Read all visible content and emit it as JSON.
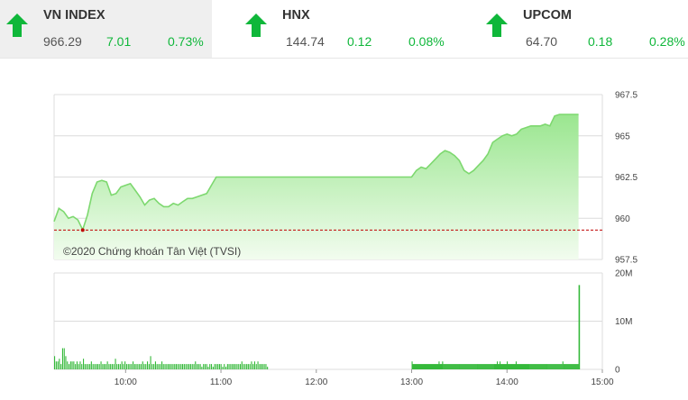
{
  "tickers": [
    {
      "name": "VN INDEX",
      "value": "966.29",
      "change": "7.01",
      "percent": "0.73%",
      "direction": "up",
      "active": true
    },
    {
      "name": "HNX",
      "value": "144.74",
      "change": "0.12",
      "percent": "0.08%",
      "direction": "up",
      "active": false
    },
    {
      "name": "UPCOM",
      "value": "64.70",
      "change": "0.18",
      "percent": "0.28%",
      "direction": "up",
      "active": false
    }
  ],
  "colors": {
    "up": "#0fb73a",
    "area_top": "#9ae68f",
    "area_bottom": "#f2fcef",
    "line": "#7dd86f",
    "ref_line": "#c00000",
    "volume": "#35b93a",
    "grid": "#dcdcdc"
  },
  "chart_data": {
    "type": "line",
    "watermark": "©2020 Chứng khoán Tân Việt (TVSI)",
    "price": {
      "ylim": [
        957.5,
        967.5
      ],
      "yticks": [
        "967.5",
        "965",
        "962.5",
        "960",
        "957.5"
      ],
      "reference": 959.28,
      "x": [
        "09:15",
        "09:18",
        "09:21",
        "09:24",
        "09:27",
        "09:30",
        "09:33",
        "09:36",
        "09:39",
        "09:42",
        "09:45",
        "09:48",
        "09:51",
        "09:54",
        "09:57",
        "10:00",
        "10:03",
        "10:06",
        "10:09",
        "10:12",
        "10:15",
        "10:18",
        "10:21",
        "10:24",
        "10:27",
        "10:30",
        "10:33",
        "10:36",
        "10:39",
        "10:42",
        "10:45",
        "10:48",
        "10:51",
        "10:54",
        "10:57",
        "11:00",
        "11:03",
        "11:06",
        "11:09",
        "11:12",
        "11:15",
        "11:18",
        "11:21",
        "11:24",
        "11:27",
        "11:30",
        "13:00",
        "13:03",
        "13:06",
        "13:09",
        "13:12",
        "13:15",
        "13:18",
        "13:21",
        "13:24",
        "13:27",
        "13:30",
        "13:33",
        "13:36",
        "13:39",
        "13:42",
        "13:45",
        "13:48",
        "13:51",
        "13:54",
        "13:57",
        "14:00",
        "14:03",
        "14:06",
        "14:09",
        "14:12",
        "14:15",
        "14:18",
        "14:21",
        "14:24",
        "14:27",
        "14:30",
        "14:33",
        "14:36",
        "14:39",
        "14:42",
        "14:45"
      ],
      "y": [
        959.8,
        960.6,
        960.4,
        960.0,
        960.1,
        959.9,
        959.3,
        960.2,
        961.5,
        962.2,
        962.3,
        962.2,
        961.4,
        961.5,
        961.9,
        962.0,
        962.1,
        961.7,
        961.3,
        960.8,
        961.1,
        961.2,
        960.9,
        960.7,
        960.7,
        960.9,
        960.8,
        961.0,
        961.2,
        961.2,
        961.3,
        961.4,
        961.5,
        962.0,
        962.5,
        962.5,
        962.5,
        962.5,
        962.5,
        962.5,
        962.5,
        962.5,
        962.5,
        962.5,
        962.5,
        962.5,
        962.5,
        962.9,
        963.1,
        963.0,
        963.3,
        963.6,
        963.9,
        964.1,
        964.0,
        963.8,
        963.5,
        962.9,
        962.7,
        962.9,
        963.2,
        963.5,
        963.9,
        964.6,
        964.8,
        965.0,
        965.1,
        965.0,
        965.1,
        965.4,
        965.5,
        965.6,
        965.6,
        965.6,
        965.7,
        965.6,
        966.2,
        966.3,
        966.3,
        966.3,
        966.3,
        966.3
      ]
    },
    "volume": {
      "ylim": [
        0,
        20000000
      ],
      "yticks": [
        "20M",
        "10M",
        "0"
      ],
      "morning_bars": [
        5,
        3,
        3,
        4,
        2,
        8,
        8,
        5,
        3,
        2,
        3,
        3,
        3,
        2,
        3,
        2,
        3,
        2,
        4,
        2,
        2,
        2,
        2,
        3,
        2,
        2,
        2,
        2,
        2,
        3,
        2,
        2,
        2,
        3,
        2,
        2,
        2,
        2,
        4,
        2,
        2,
        2,
        3,
        2,
        3,
        2,
        2,
        2,
        2,
        3,
        2,
        2,
        2,
        2,
        2,
        3,
        2,
        2,
        3,
        2,
        5,
        2,
        2,
        3,
        2,
        2,
        2,
        3,
        2,
        2,
        2,
        2,
        2,
        2,
        2,
        2,
        2,
        2,
        2,
        2,
        2,
        2,
        2,
        2,
        2,
        2,
        2,
        2,
        3,
        2,
        2,
        2,
        1,
        2,
        2,
        2,
        1,
        2,
        2,
        1,
        2,
        2,
        2,
        2,
        2,
        1,
        2,
        1,
        2,
        2,
        2,
        2,
        2,
        2,
        2,
        2,
        2,
        3,
        2,
        2,
        2,
        2,
        2,
        3,
        2,
        3,
        2,
        3,
        2,
        2,
        2,
        2,
        2,
        1
      ],
      "afternoon_bars": [
        3,
        2,
        2,
        2,
        2,
        2,
        2,
        2,
        2,
        2,
        2,
        2,
        2,
        2,
        2,
        2,
        2,
        2,
        2,
        2,
        2,
        2,
        2,
        2,
        2,
        2,
        2,
        2,
        2,
        2,
        3,
        2,
        2,
        2,
        3,
        2,
        2,
        2,
        2,
        2,
        2,
        2,
        2,
        2,
        2,
        2,
        2,
        2,
        2,
        2,
        2,
        2,
        2,
        2,
        2,
        2,
        2,
        2,
        2,
        2,
        2,
        2,
        2,
        2,
        2,
        2,
        2,
        2,
        2,
        2,
        2,
        2,
        2,
        2,
        2,
        2,
        2,
        2,
        2,
        2,
        2,
        2,
        2,
        2,
        2,
        2,
        2,
        2,
        2,
        2,
        2,
        2,
        2,
        2,
        2,
        3,
        2,
        2,
        3,
        2,
        2,
        2,
        2,
        2,
        2,
        2,
        3,
        2,
        2,
        2,
        2,
        2,
        2,
        2,
        2,
        2,
        3,
        2,
        2,
        2,
        2,
        2,
        2,
        2,
        2,
        2,
        2,
        2,
        2,
        2,
        2,
        2,
        2,
        2,
        2,
        2,
        2,
        2,
        2,
        2,
        2,
        2,
        2,
        2,
        2,
        2,
        2,
        2,
        2,
        2,
        2,
        2,
        2,
        2,
        2,
        2,
        2,
        2,
        2,
        2,
        2,
        2,
        2,
        2,
        2,
        2,
        2,
        2,
        3,
        2,
        2,
        2,
        2,
        2,
        2,
        2,
        2,
        2,
        2,
        2,
        2,
        2,
        2,
        2,
        2,
        2
      ],
      "closing_auction": 17500000
    },
    "xaxis": {
      "start": "09:15",
      "end": "15:00",
      "ticks": [
        "10:00",
        "11:00",
        "12:00",
        "13:00",
        "14:00",
        "15:00"
      ]
    }
  }
}
